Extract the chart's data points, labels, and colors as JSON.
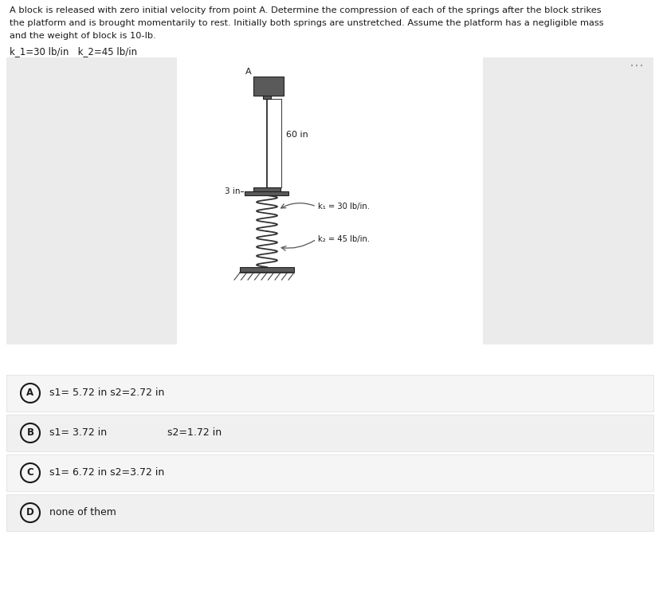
{
  "title_line1": "A block is released with zero initial velocity from point A. Determine the compression of each of the springs after the block strikes",
  "title_line2": "the platform and is brought momentarily to rest. Initially both springs are unstretched. Assume the platform has a negligible mass",
  "title_line3": "and the weight of block is 10-lb.",
  "subtitle_text": "k_1=30 lb/in   k_2=45 lb/in",
  "diagram_label_A": "A",
  "diagram_60in": "60 in",
  "diagram_3in": "3 in",
  "diagram_k1": "k₁ = 30 lb/in.",
  "diagram_k2": "k₂ = 45 lb/in.",
  "three_dots": "⋯",
  "options": [
    {
      "letter": "A",
      "text": "s1= 5.72 in s2=2.72 in",
      "text2": null
    },
    {
      "letter": "B",
      "text": "s1= 3.72 in",
      "text2": "s2=1.72 in"
    },
    {
      "letter": "C",
      "text": "s1= 6.72 in s2=3.72 in",
      "text2": null
    },
    {
      "letter": "D",
      "text": "none of them",
      "text2": null
    }
  ],
  "bg_color": "#ffffff",
  "panel_color": "#ebebeb",
  "option_bg_even": "#f5f5f5",
  "option_bg_odd": "#f0f0f0",
  "option_border_color": "#dddddd",
  "text_color": "#1a1a1a",
  "gray_color": "#999999",
  "block_color": "#5a5a5a",
  "line_color": "#444444"
}
